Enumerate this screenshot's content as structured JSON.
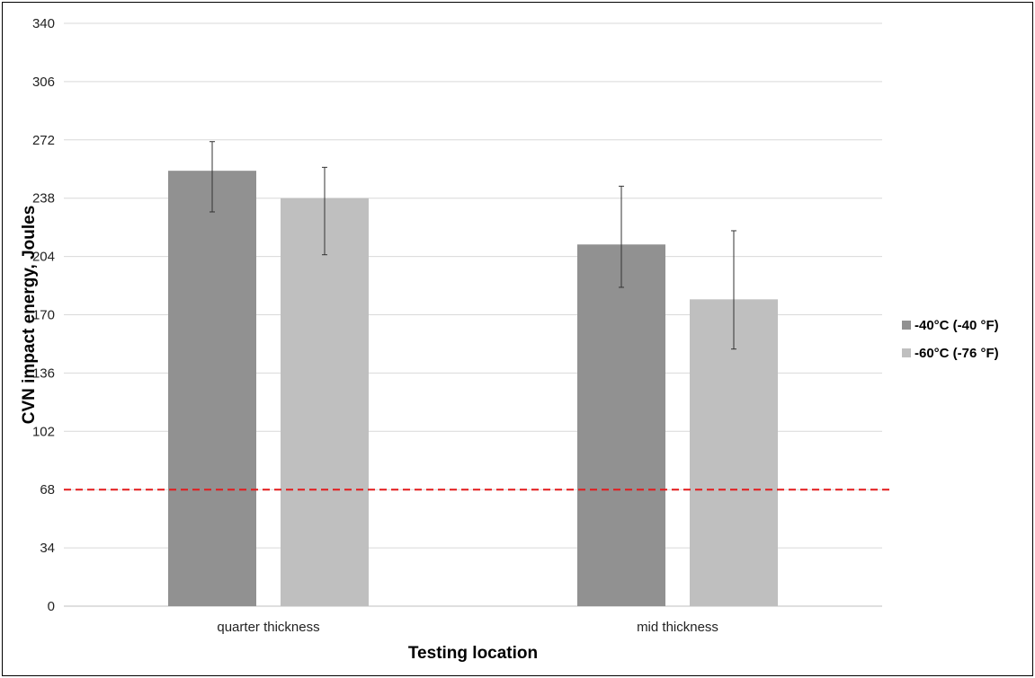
{
  "chart_data": {
    "type": "bar",
    "title": "",
    "xlabel": "Testing location",
    "ylabel": "CVN impact energy, Joules",
    "categories": [
      "quarter thickness",
      "mid thickness"
    ],
    "ylim": [
      0,
      340
    ],
    "yticks": [
      0,
      34,
      68,
      102,
      136,
      170,
      204,
      238,
      272,
      306,
      340
    ],
    "grid": true,
    "legend_position": "right",
    "series": [
      {
        "name": "-40°C (-40 °F)",
        "color": "#919191",
        "values": [
          254,
          211
        ],
        "error_low": [
          230,
          186
        ],
        "error_high": [
          271,
          245
        ]
      },
      {
        "name": "-60°C (-76 °F)",
        "color": "#bfbfbf",
        "values": [
          238,
          179
        ],
        "error_low": [
          205,
          150
        ],
        "error_high": [
          256,
          219
        ]
      }
    ],
    "reference_line": {
      "value": 68,
      "color": "#e31a1c",
      "style": "dashed"
    }
  }
}
